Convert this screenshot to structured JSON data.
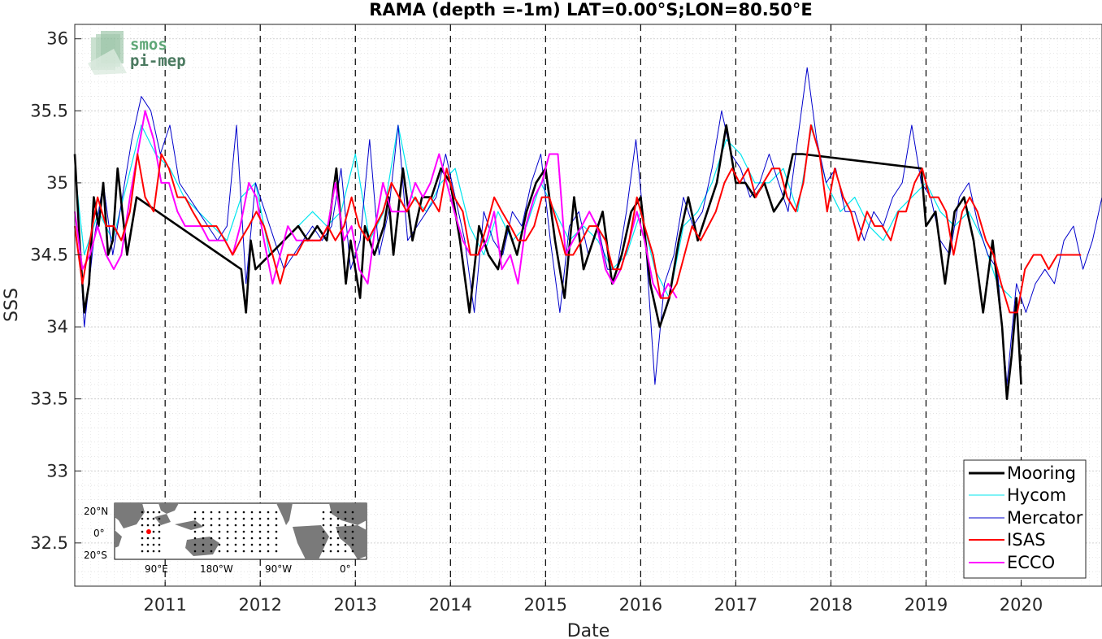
{
  "chart_data": {
    "type": "line",
    "title": "RAMA (depth =-1m) LAT=0.00°S;LON=80.50°E",
    "xlabel": "Date",
    "ylabel": "SSS",
    "xlim": [
      2010.05,
      2020.85
    ],
    "ylim": [
      32.2,
      36.1
    ],
    "x_ticks": [
      2011,
      2012,
      2013,
      2014,
      2015,
      2016,
      2017,
      2018,
      2019,
      2020
    ],
    "y_ticks": [
      32.5,
      33,
      33.5,
      34,
      34.5,
      35,
      35.5,
      36
    ],
    "y_tick_labels": [
      "32.5",
      "33",
      "33.5",
      "34",
      "34.5",
      "35",
      "35.5",
      "36"
    ],
    "grid": true,
    "year_markers": "dashed vertical lines at each year boundary",
    "legend_position": "bottom-right",
    "series": [
      {
        "name": "Mooring",
        "color": "#000000",
        "x": [
          2010.05,
          2010.1,
          2010.15,
          2010.2,
          2010.25,
          2010.3,
          2010.35,
          2010.4,
          2010.45,
          2010.5,
          2010.6,
          2010.7,
          2011.8,
          2011.85,
          2011.9,
          2011.95,
          2012.4,
          2012.5,
          2012.6,
          2012.7,
          2012.8,
          2012.9,
          2012.95,
          2013.05,
          2013.1,
          2013.2,
          2013.3,
          2013.35,
          2013.4,
          2013.45,
          2013.5,
          2013.6,
          2013.7,
          2013.8,
          2013.9,
          2014.0,
          2014.1,
          2014.2,
          2014.3,
          2014.4,
          2014.5,
          2014.6,
          2014.7,
          2014.8,
          2014.9,
          2015.0,
          2015.1,
          2015.2,
          2015.3,
          2015.4,
          2015.5,
          2015.6,
          2015.7,
          2015.8,
          2015.9,
          2016.0,
          2016.1,
          2016.2,
          2016.3,
          2016.4,
          2016.5,
          2016.6,
          2016.7,
          2016.8,
          2016.9,
          2016.95,
          2017.0,
          2017.1,
          2017.2,
          2017.3,
          2017.4,
          2017.5,
          2017.6,
          2017.7,
          2018.95,
          2019.0,
          2019.1,
          2019.2,
          2019.3,
          2019.4,
          2019.5,
          2019.6,
          2019.7,
          2019.8,
          2019.85,
          2019.9,
          2019.95,
          2020.0
        ],
        "y": [
          35.2,
          34.6,
          34.1,
          34.3,
          34.9,
          34.7,
          35.0,
          34.5,
          34.6,
          35.1,
          34.5,
          34.9,
          34.4,
          34.1,
          34.6,
          34.4,
          34.7,
          34.6,
          34.7,
          34.6,
          35.1,
          34.3,
          34.6,
          34.2,
          34.7,
          34.5,
          34.7,
          34.9,
          34.5,
          34.8,
          35.1,
          34.6,
          34.9,
          34.9,
          35.1,
          35.0,
          34.6,
          34.1,
          34.7,
          34.5,
          34.4,
          34.7,
          34.5,
          34.8,
          35.0,
          35.1,
          34.6,
          34.2,
          34.9,
          34.4,
          34.6,
          34.8,
          34.3,
          34.5,
          34.8,
          34.9,
          34.3,
          34.0,
          34.2,
          34.6,
          34.9,
          34.6,
          34.8,
          35.0,
          35.4,
          35.2,
          35.0,
          35.0,
          34.9,
          35.0,
          34.8,
          34.9,
          35.2,
          35.2,
          35.1,
          34.7,
          34.8,
          34.3,
          34.8,
          34.9,
          34.6,
          34.1,
          34.6,
          34.0,
          33.5,
          33.8,
          34.2,
          33.6
        ]
      },
      {
        "name": "Hycom",
        "color": "#00e5ee",
        "x": [
          2010.05,
          2010.15,
          2010.3,
          2010.45,
          2010.6,
          2010.75,
          2010.9,
          2011.05,
          2011.2,
          2011.35,
          2011.5,
          2011.65,
          2011.8,
          2011.95,
          2012.1,
          2012.25,
          2012.4,
          2012.55,
          2012.7,
          2012.85,
          2013.0,
          2013.15,
          2013.3,
          2013.45,
          2013.6,
          2013.75,
          2013.9,
          2014.05,
          2014.2,
          2014.35,
          2014.5,
          2014.65,
          2014.8,
          2014.95,
          2015.1,
          2015.25,
          2015.4,
          2015.55,
          2015.7,
          2015.85,
          2016.0,
          2016.15,
          2016.3,
          2016.45,
          2016.6,
          2016.75,
          2016.9,
          2017.05,
          2017.2,
          2017.35,
          2017.5,
          2017.65,
          2017.8,
          2017.95,
          2018.1,
          2018.25,
          2018.4,
          2018.55,
          2018.7,
          2018.85,
          2019.0,
          2019.15,
          2019.3,
          2019.45,
          2019.6,
          2019.75,
          2019.9
        ],
        "y": [
          35.1,
          34.5,
          34.8,
          34.6,
          35.0,
          35.4,
          35.2,
          35.1,
          34.9,
          34.8,
          34.7,
          34.6,
          34.9,
          35.0,
          34.5,
          34.6,
          34.7,
          34.8,
          34.7,
          34.8,
          35.2,
          34.6,
          34.8,
          35.4,
          34.9,
          34.8,
          35.0,
          35.1,
          34.7,
          34.5,
          34.8,
          34.6,
          34.7,
          35.0,
          34.8,
          34.6,
          34.7,
          34.6,
          34.4,
          34.5,
          34.8,
          34.4,
          34.2,
          34.7,
          34.8,
          35.0,
          35.3,
          35.2,
          35.0,
          35.0,
          35.1,
          34.8,
          35.4,
          35.0,
          34.8,
          34.9,
          34.7,
          34.6,
          34.8,
          34.9,
          35.0,
          34.8,
          34.7,
          34.8,
          34.6,
          34.3,
          34.2
        ]
      },
      {
        "name": "Mercator",
        "color": "#0000cc",
        "x": [
          2010.05,
          2010.15,
          2010.25,
          2010.35,
          2010.45,
          2010.55,
          2010.65,
          2010.75,
          2010.85,
          2010.95,
          2011.05,
          2011.15,
          2011.25,
          2011.35,
          2011.45,
          2011.55,
          2011.65,
          2011.75,
          2011.85,
          2011.95,
          2012.05,
          2012.15,
          2012.25,
          2012.35,
          2012.45,
          2012.55,
          2012.65,
          2012.75,
          2012.85,
          2012.95,
          2013.05,
          2013.15,
          2013.25,
          2013.35,
          2013.45,
          2013.55,
          2013.65,
          2013.75,
          2013.85,
          2013.95,
          2014.05,
          2014.15,
          2014.25,
          2014.35,
          2014.45,
          2014.55,
          2014.65,
          2014.75,
          2014.85,
          2014.95,
          2015.05,
          2015.15,
          2015.25,
          2015.35,
          2015.45,
          2015.55,
          2015.65,
          2015.75,
          2015.85,
          2015.95,
          2016.05,
          2016.15,
          2016.25,
          2016.35,
          2016.45,
          2016.55,
          2016.65,
          2016.75,
          2016.85,
          2016.95,
          2017.05,
          2017.15,
          2017.25,
          2017.35,
          2017.45,
          2017.55,
          2017.65,
          2017.75,
          2017.85,
          2017.95,
          2018.05,
          2018.15,
          2018.25,
          2018.35,
          2018.45,
          2018.55,
          2018.65,
          2018.75,
          2018.85,
          2018.95,
          2019.05,
          2019.15,
          2019.25,
          2019.35,
          2019.45,
          2019.55,
          2019.65,
          2019.75,
          2019.85,
          2019.95,
          2020.05,
          2020.15,
          2020.25,
          2020.35,
          2020.45,
          2020.55,
          2020.65,
          2020.75,
          2020.85
        ],
        "y": [
          35.2,
          34.0,
          34.6,
          35.0,
          34.5,
          34.9,
          35.3,
          35.6,
          35.5,
          35.2,
          35.4,
          35.0,
          34.9,
          34.8,
          34.7,
          34.6,
          34.7,
          35.4,
          34.3,
          35.0,
          34.8,
          34.6,
          34.4,
          34.5,
          34.6,
          34.7,
          34.6,
          34.7,
          35.1,
          34.4,
          34.6,
          35.3,
          34.5,
          34.8,
          35.4,
          34.6,
          34.7,
          34.8,
          34.9,
          35.2,
          34.9,
          34.6,
          34.1,
          34.8,
          34.6,
          34.5,
          34.8,
          34.7,
          35.0,
          35.2,
          34.6,
          34.1,
          34.7,
          34.8,
          34.5,
          34.7,
          34.4,
          34.4,
          34.8,
          35.3,
          34.6,
          33.6,
          34.3,
          34.5,
          34.9,
          34.7,
          34.8,
          35.1,
          35.5,
          35.2,
          35.1,
          34.9,
          35.0,
          35.2,
          35.0,
          34.8,
          35.3,
          35.8,
          35.3,
          35.0,
          35.1,
          34.8,
          34.8,
          34.6,
          34.8,
          34.7,
          34.9,
          35.0,
          35.4,
          35.0,
          34.9,
          34.6,
          34.5,
          34.9,
          35.0,
          34.7,
          34.5,
          34.4,
          33.6,
          34.3,
          34.1,
          34.3,
          34.4,
          34.3,
          34.6,
          34.7,
          34.4,
          34.6,
          34.9
        ]
      },
      {
        "name": "ISAS",
        "color": "#ff0000",
        "x": [
          2010.05,
          2010.13,
          2010.21,
          2010.29,
          2010.38,
          2010.46,
          2010.54,
          2010.63,
          2010.71,
          2010.79,
          2010.88,
          2010.96,
          2011.04,
          2011.13,
          2011.21,
          2011.29,
          2011.38,
          2011.46,
          2011.54,
          2011.63,
          2011.71,
          2011.79,
          2011.88,
          2011.96,
          2012.04,
          2012.13,
          2012.21,
          2012.29,
          2012.38,
          2012.46,
          2012.54,
          2012.63,
          2012.71,
          2012.79,
          2012.88,
          2012.96,
          2013.04,
          2013.13,
          2013.21,
          2013.29,
          2013.38,
          2013.46,
          2013.54,
          2013.63,
          2013.71,
          2013.79,
          2013.88,
          2013.96,
          2014.04,
          2014.13,
          2014.21,
          2014.29,
          2014.38,
          2014.46,
          2014.54,
          2014.63,
          2014.71,
          2014.79,
          2014.88,
          2014.96,
          2015.04,
          2015.13,
          2015.21,
          2015.29,
          2015.38,
          2015.46,
          2015.54,
          2015.63,
          2015.71,
          2015.79,
          2015.88,
          2015.96,
          2016.04,
          2016.13,
          2016.21,
          2016.29,
          2016.38,
          2016.46,
          2016.54,
          2016.63,
          2016.71,
          2016.79,
          2016.88,
          2016.96,
          2017.04,
          2017.13,
          2017.21,
          2017.29,
          2017.38,
          2017.46,
          2017.54,
          2017.63,
          2017.71,
          2017.79,
          2017.88,
          2017.96,
          2018.04,
          2018.13,
          2018.21,
          2018.29,
          2018.38,
          2018.46,
          2018.54,
          2018.63,
          2018.71,
          2018.79,
          2018.88,
          2018.96,
          2019.04,
          2019.13,
          2019.21,
          2019.29,
          2019.38,
          2019.46,
          2019.54,
          2019.63,
          2019.71,
          2019.79,
          2019.88,
          2019.96,
          2020.04,
          2020.13,
          2020.21,
          2020.29,
          2020.38,
          2020.46,
          2020.54,
          2020.63
        ],
        "y": [
          34.7,
          34.3,
          34.6,
          34.9,
          34.7,
          34.7,
          34.6,
          34.8,
          35.2,
          34.9,
          34.8,
          35.2,
          35.1,
          34.9,
          34.9,
          34.8,
          34.7,
          34.7,
          34.7,
          34.6,
          34.5,
          34.6,
          34.7,
          34.8,
          34.7,
          34.5,
          34.3,
          34.5,
          34.5,
          34.6,
          34.6,
          34.6,
          34.7,
          34.6,
          34.7,
          34.9,
          34.7,
          34.6,
          34.7,
          34.8,
          35.0,
          34.9,
          34.8,
          34.9,
          34.8,
          34.9,
          34.8,
          35.1,
          34.9,
          34.8,
          34.5,
          34.5,
          34.7,
          34.9,
          34.8,
          34.7,
          34.6,
          34.6,
          34.7,
          34.9,
          34.9,
          34.7,
          34.5,
          34.5,
          34.6,
          34.7,
          34.7,
          34.6,
          34.4,
          34.4,
          34.6,
          34.9,
          34.7,
          34.5,
          34.2,
          34.2,
          34.3,
          34.5,
          34.7,
          34.6,
          34.7,
          34.8,
          35.0,
          35.1,
          35.0,
          35.1,
          34.9,
          35.0,
          35.1,
          35.1,
          34.9,
          34.8,
          35.0,
          35.4,
          35.2,
          34.8,
          35.1,
          34.9,
          34.8,
          34.6,
          34.8,
          34.7,
          34.7,
          34.6,
          34.8,
          34.8,
          35.0,
          35.1,
          34.9,
          34.9,
          34.8,
          34.5,
          34.8,
          34.9,
          34.8,
          34.6,
          34.5,
          34.3,
          34.1,
          34.1,
          34.4,
          34.5,
          34.5,
          34.4,
          34.5,
          34.5,
          34.5,
          34.5
        ]
      },
      {
        "name": "ECCO",
        "color": "#ff00ff",
        "x": [
          2010.05,
          2010.13,
          2010.21,
          2010.29,
          2010.38,
          2010.46,
          2010.54,
          2010.63,
          2010.71,
          2010.79,
          2010.88,
          2010.96,
          2011.04,
          2011.13,
          2011.21,
          2011.29,
          2011.38,
          2011.46,
          2011.54,
          2011.63,
          2011.71,
          2011.79,
          2011.88,
          2011.96,
          2012.04,
          2012.13,
          2012.21,
          2012.29,
          2012.38,
          2012.46,
          2012.54,
          2012.63,
          2012.71,
          2012.79,
          2012.88,
          2012.96,
          2013.04,
          2013.13,
          2013.21,
          2013.29,
          2013.38,
          2013.46,
          2013.54,
          2013.63,
          2013.71,
          2013.79,
          2013.88,
          2013.96,
          2014.04,
          2014.13,
          2014.21,
          2014.29,
          2014.38,
          2014.46,
          2014.54,
          2014.63,
          2014.71,
          2014.79,
          2014.88,
          2014.96,
          2015.04,
          2015.13,
          2015.21,
          2015.29,
          2015.38,
          2015.46,
          2015.54,
          2015.63,
          2015.71,
          2015.79,
          2015.88,
          2015.96,
          2016.04,
          2016.13,
          2016.21,
          2016.29,
          2016.38
        ],
        "y": [
          34.8,
          34.4,
          34.5,
          34.7,
          34.5,
          34.4,
          34.5,
          34.9,
          35.2,
          35.5,
          35.3,
          35.0,
          35.0,
          34.8,
          34.7,
          34.7,
          34.7,
          34.6,
          34.6,
          34.6,
          34.5,
          34.7,
          35.0,
          34.9,
          34.6,
          34.3,
          34.5,
          34.7,
          34.6,
          34.6,
          34.6,
          34.6,
          34.7,
          35.0,
          34.6,
          34.7,
          34.4,
          34.3,
          34.7,
          35.0,
          34.8,
          34.8,
          34.8,
          35.0,
          34.9,
          35.0,
          35.2,
          35.0,
          34.8,
          34.6,
          34.5,
          34.5,
          34.6,
          34.8,
          34.4,
          34.5,
          34.3,
          34.7,
          34.9,
          35.0,
          35.2,
          35.2,
          34.5,
          34.6,
          34.7,
          34.8,
          34.7,
          34.4,
          34.3,
          34.4,
          34.6,
          34.8,
          34.6,
          34.3,
          34.2,
          34.3,
          34.2
        ]
      }
    ]
  },
  "legend": {
    "items": [
      {
        "label": "Mooring",
        "color": "#000000"
      },
      {
        "label": "Hycom",
        "color": "#00e5ee"
      },
      {
        "label": "Mercator",
        "color": "#0000cc"
      },
      {
        "label": "ISAS",
        "color": "#ff0000"
      },
      {
        "label": "ECCO",
        "color": "#ff00ff"
      }
    ]
  },
  "logo": {
    "line1": "smos",
    "line2": "pi-mep",
    "color": "#5fa777",
    "line2_color": "#4b7a60"
  },
  "inset_map": {
    "lat_labels": [
      "20°N",
      "0°",
      "20°S"
    ],
    "lon_labels": [
      "90°E",
      "180°W",
      "90°W",
      "0°"
    ],
    "ocean_color": "#ffffff",
    "land_color": "#7a7a7a",
    "marker_color": "#ff0000"
  }
}
